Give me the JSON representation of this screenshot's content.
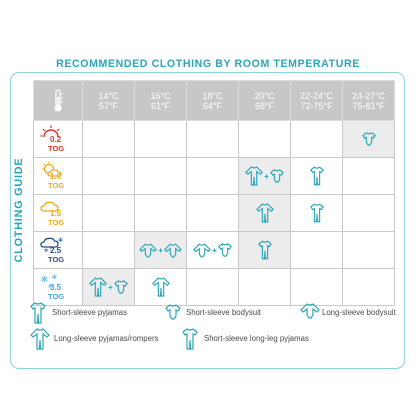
{
  "title": "RECOMMENDED CLOTHING BY ROOM TEMPERATURE",
  "side_label": "CLOTHING GUIDE",
  "header": {
    "icon": "thermometer-icon",
    "columns": [
      {
        "c": "14°C",
        "f": "57°F"
      },
      {
        "c": "16°C",
        "f": "61°F"
      },
      {
        "c": "18°C",
        "f": "64°F"
      },
      {
        "c": "20°C",
        "f": "68°F"
      },
      {
        "c": "22-24°C",
        "f": "72-75°F"
      },
      {
        "c": "24-27°C",
        "f": "75-81°F"
      }
    ]
  },
  "rows": [
    {
      "tog": "0.2",
      "unit": "TOG",
      "icon": "sun-icon",
      "color": "#d3352b",
      "cells": [
        [],
        [],
        [],
        [],
        [],
        [
          "short-sleeve-bodysuit"
        ]
      ],
      "shaded": [
        false,
        false,
        false,
        false,
        false,
        true
      ]
    },
    {
      "tog": "1.0",
      "unit": "TOG",
      "icon": "partly-cloudy-icon",
      "color": "#f0a81c",
      "cells": [
        [],
        [],
        [],
        [
          "long-sleeve-pyjamas",
          "short-sleeve-bodysuit"
        ],
        [
          "short-sleeve-long-leg-pyjamas"
        ],
        []
      ],
      "shaded": [
        false,
        false,
        false,
        true,
        false,
        false
      ]
    },
    {
      "tog": "1.5",
      "unit": "TOG",
      "icon": "cloud-icon",
      "color": "#f0a81c",
      "cells": [
        [],
        [],
        [],
        [
          "long-sleeve-pyjamas"
        ],
        [
          "short-sleeve-long-leg-pyjamas"
        ],
        []
      ],
      "shaded": [
        false,
        false,
        false,
        true,
        false,
        false
      ]
    },
    {
      "tog": "2.5",
      "unit": "TOG",
      "icon": "snow-cloud-icon",
      "color": "#1f4e8c",
      "cells": [
        [],
        [
          "long-sleeve-bodysuit",
          "long-sleeve-bodysuit"
        ],
        [
          "long-sleeve-bodysuit",
          "short-sleeve-bodysuit"
        ],
        [
          "short-sleeve-long-leg-pyjamas"
        ],
        [],
        []
      ],
      "shaded": [
        false,
        true,
        false,
        true,
        false,
        false
      ]
    },
    {
      "tog": "3.5",
      "unit": "TOG",
      "icon": "snowflake-icon",
      "color": "#4aa3d8",
      "cells": [
        [
          "long-sleeve-pyjamas",
          "short-sleeve-bodysuit"
        ],
        [
          "long-sleeve-pyjamas"
        ],
        [],
        [],
        [],
        []
      ],
      "shaded": [
        true,
        false,
        false,
        false,
        false,
        false
      ]
    }
  ],
  "plus_sign": "+",
  "legend": [
    {
      "icon": "short-sleeve-pyjamas-icon",
      "label": "Short-sleeve pyjamas"
    },
    {
      "icon": "short-sleeve-bodysuit-icon",
      "label": "Short-sleeve bodysuit"
    },
    {
      "icon": "long-sleeve-bodysuit-icon",
      "label": "Long-sleeve bodysuit"
    },
    {
      "icon": "long-sleeve-pyjamas-icon",
      "label": "Long-sleeve pyjamas/rompers"
    },
    {
      "icon": "short-sleeve-long-leg-pyjamas-icon",
      "label": "Short-sleeve long-leg pyjamas"
    }
  ],
  "colors": {
    "accent": "#2aa6b8",
    "header_bg": "#c7c7c7",
    "shade": "#ececec"
  }
}
